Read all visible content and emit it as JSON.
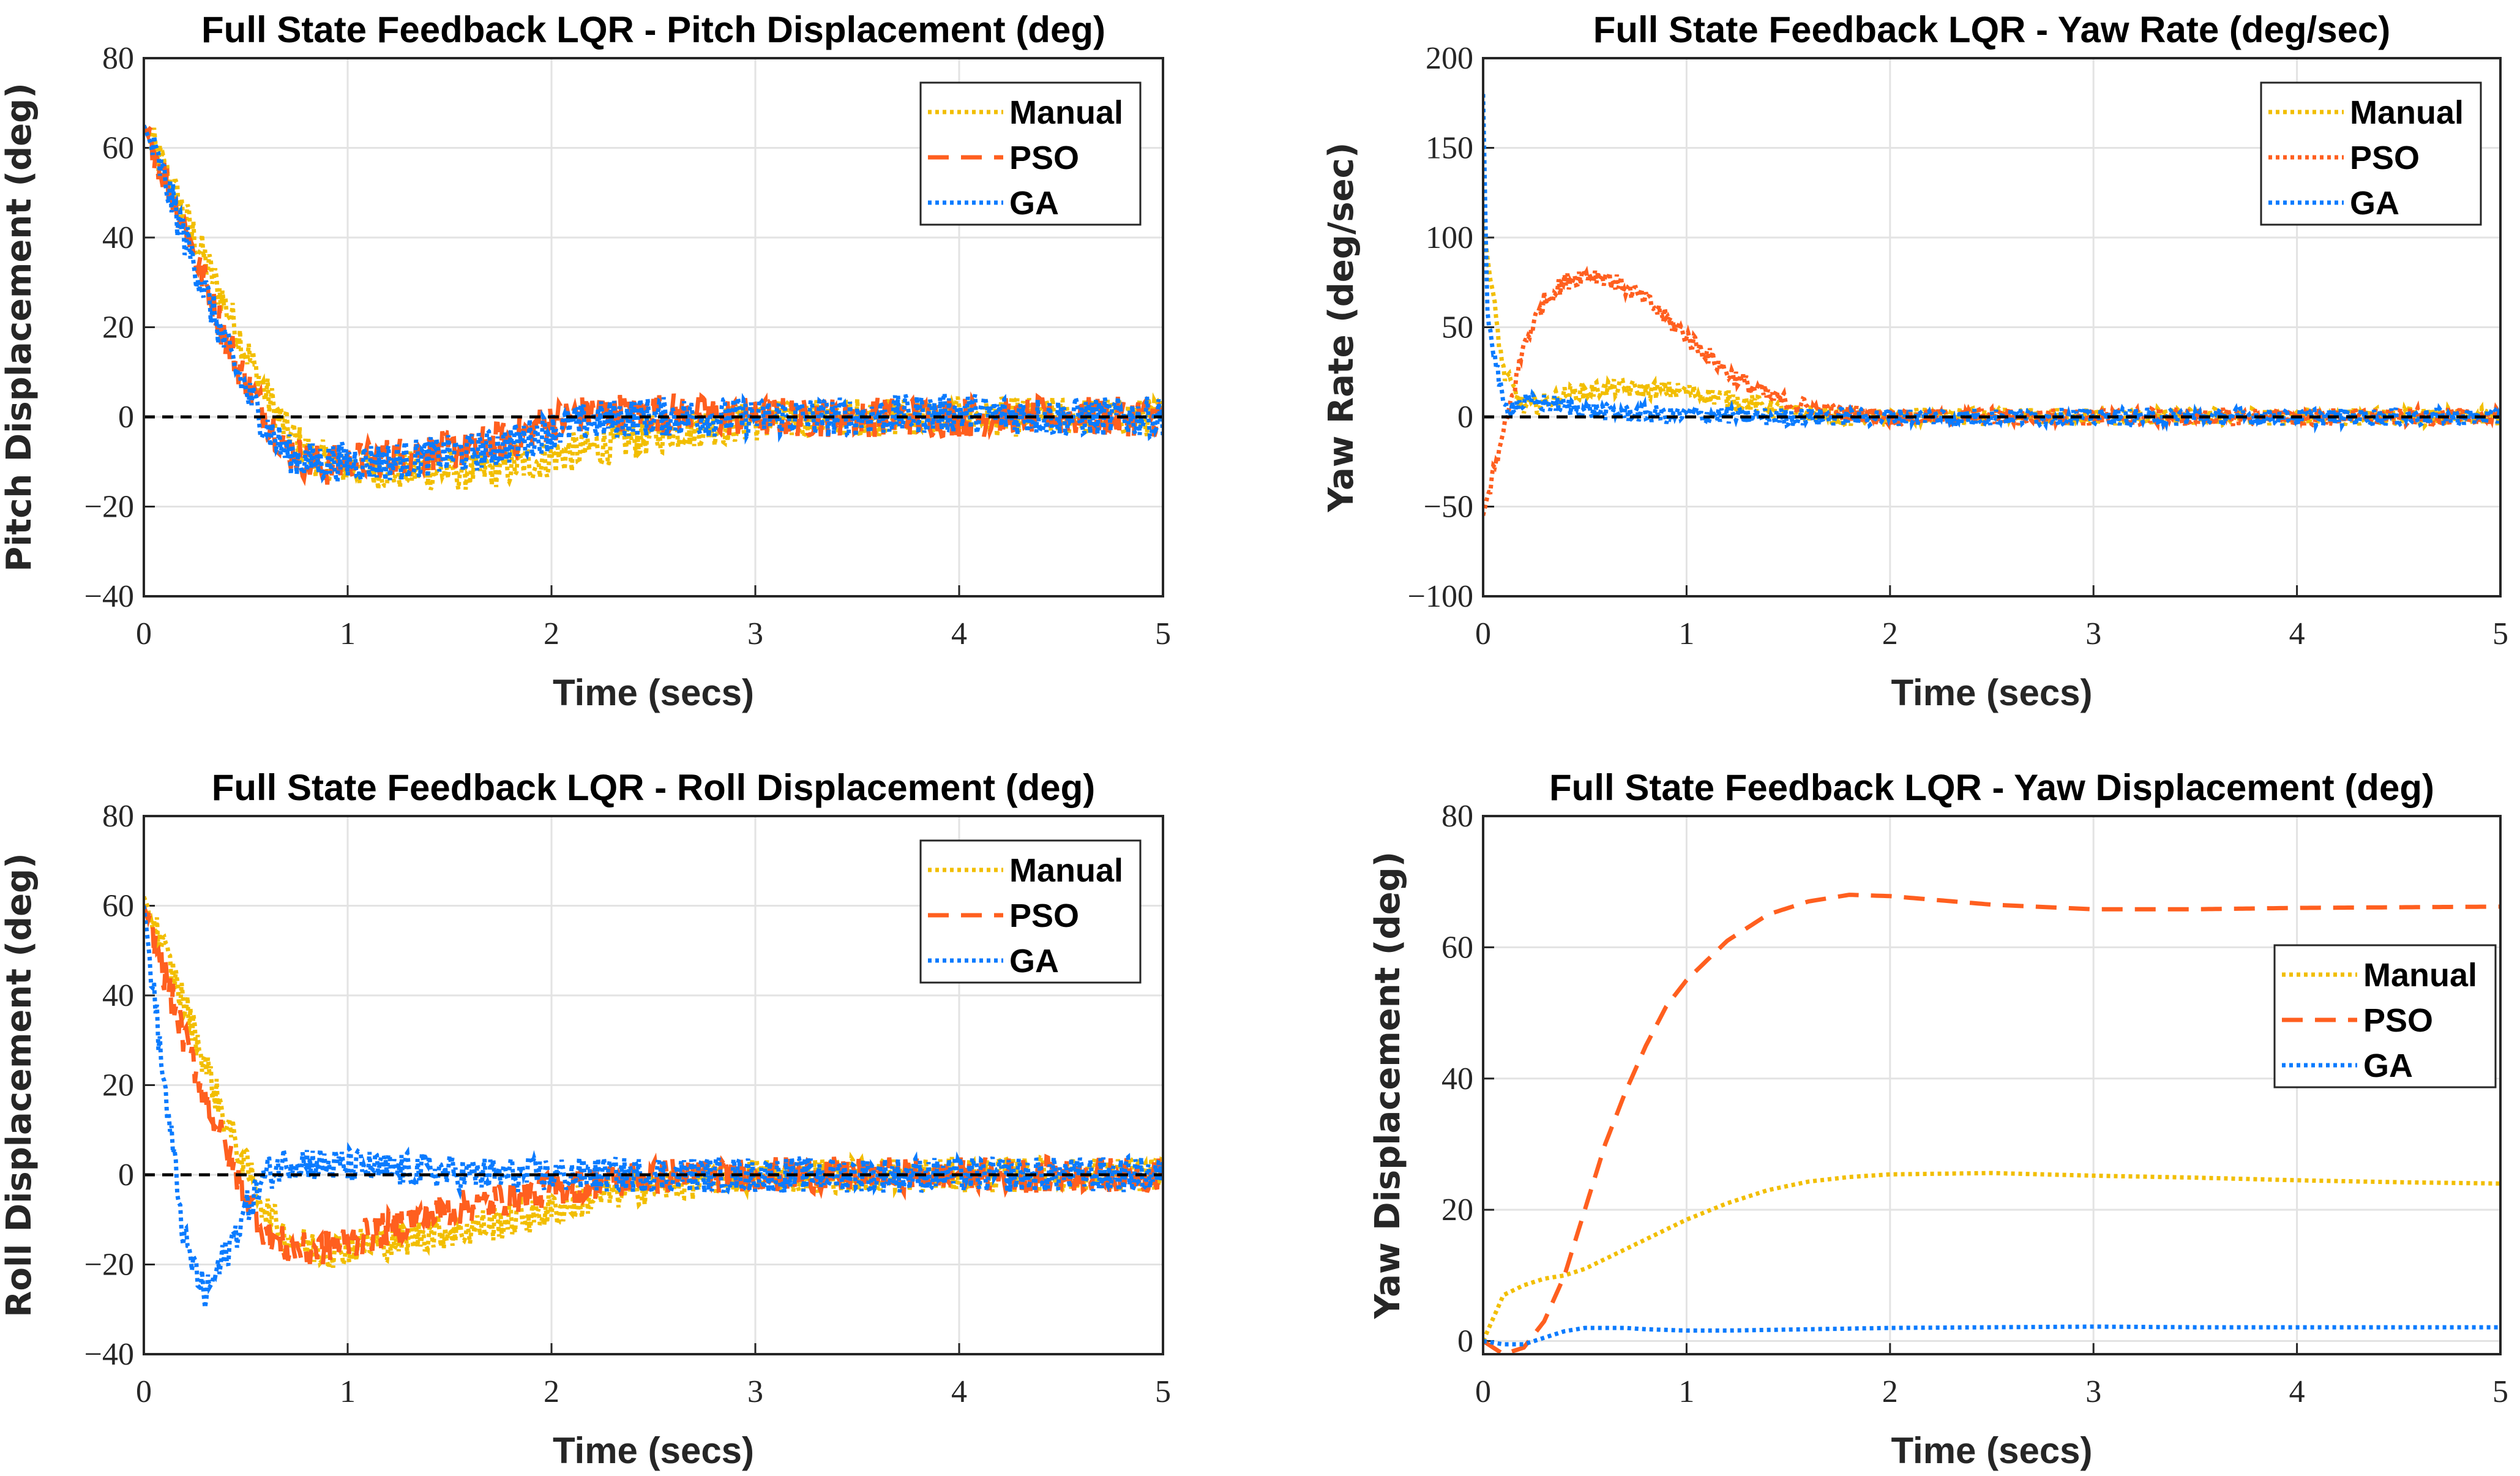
{
  "chart_data": [
    {
      "type": "line",
      "title": "Full State Feedback LQR - Pitch Displacement (deg)",
      "xlabel": "Time (secs)",
      "ylabel": "Pitch Displacement (deg)",
      "xlim": [
        0,
        5
      ],
      "ylim": [
        -40,
        80
      ],
      "xticks": [
        "0",
        "1",
        "2",
        "3",
        "4",
        "5"
      ],
      "yticks": [
        "−40",
        "−20",
        "0",
        "20",
        "40",
        "60",
        "80"
      ],
      "ytick_values": [
        -40,
        -20,
        0,
        20,
        40,
        60,
        80
      ],
      "grid": true,
      "reference_line": 0,
      "legend_position": "top-right",
      "noise_amplitude": 4.5,
      "x": [
        0,
        0.1,
        0.2,
        0.3,
        0.4,
        0.5,
        0.6,
        0.7,
        0.8,
        0.9,
        1.0,
        1.2,
        1.4,
        1.6,
        1.8,
        2.0,
        2.2,
        2.4,
        2.6,
        2.8,
        3.0,
        3.5,
        4,
        4.5,
        5
      ],
      "series": [
        {
          "name": "Manual",
          "color": "#F2BE00",
          "style": "dotted",
          "values": [
            65,
            55,
            45,
            35,
            25,
            15,
            5,
            -3,
            -8,
            -10,
            -11,
            -12,
            -12,
            -12,
            -11,
            -9,
            -7,
            -5,
            -3,
            -2,
            -1,
            0,
            0,
            0,
            0
          ]
        },
        {
          "name": "PSO",
          "color": "#FF5F1F",
          "style": "dashed",
          "values": [
            65,
            54,
            42,
            30,
            18,
            8,
            0,
            -7,
            -10,
            -11,
            -10,
            -9,
            -8,
            -7,
            -5,
            -1,
            1,
            1,
            1,
            0,
            0,
            0,
            0,
            0,
            0
          ]
        },
        {
          "name": "GA",
          "color": "#0A7BFF",
          "style": "dotted",
          "values": [
            65,
            53,
            40,
            28,
            16,
            6,
            -2,
            -8,
            -10,
            -10,
            -10,
            -10,
            -9,
            -8,
            -6,
            -3,
            -1,
            0,
            0,
            0,
            0,
            0,
            1,
            0,
            0
          ]
        }
      ]
    },
    {
      "type": "line",
      "title": "Full State Feedback LQR - Yaw Rate (deg/sec)",
      "xlabel": "Time (secs)",
      "ylabel": "Yaw Rate (deg/sec)",
      "xlim": [
        0,
        5
      ],
      "ylim": [
        -100,
        200
      ],
      "xticks": [
        "0",
        "1",
        "2",
        "3",
        "4",
        "5"
      ],
      "yticks": [
        "−100",
        "−50",
        "0",
        "50",
        "100",
        "150",
        "200"
      ],
      "ytick_values": [
        -100,
        -50,
        0,
        50,
        100,
        150,
        200
      ],
      "grid": true,
      "reference_line": 0,
      "legend_position": "top-right",
      "noise_amplitude": 5,
      "x": [
        0,
        0.02,
        0.1,
        0.2,
        0.3,
        0.4,
        0.5,
        0.6,
        0.7,
        0.8,
        0.9,
        1.0,
        1.1,
        1.2,
        1.3,
        1.4,
        1.5,
        1.6,
        1.7,
        1.8,
        2.0,
        2.5,
        3,
        4,
        5
      ],
      "series": [
        {
          "name": "Manual",
          "color": "#F2BE00",
          "style": "dotted",
          "values": [
            110,
            90,
            25,
            5,
            8,
            12,
            14,
            16,
            16,
            15,
            15,
            14,
            12,
            10,
            8,
            5,
            3,
            2,
            1,
            0,
            0,
            0,
            0,
            0,
            0
          ]
        },
        {
          "name": "PSO",
          "color": "#FF5F1F",
          "style": "dotted",
          "values": [
            -55,
            -45,
            -10,
            40,
            65,
            75,
            80,
            78,
            72,
            65,
            55,
            45,
            35,
            25,
            18,
            12,
            8,
            5,
            3,
            2,
            0,
            0,
            0,
            0,
            0
          ]
        },
        {
          "name": "GA",
          "color": "#0A7BFF",
          "style": "dotted",
          "values": [
            180,
            60,
            5,
            8,
            8,
            6,
            4,
            3,
            2,
            2,
            1,
            1,
            1,
            1,
            0,
            0,
            0,
            0,
            0,
            0,
            0,
            0,
            0,
            0,
            0
          ]
        }
      ]
    },
    {
      "type": "line",
      "title": "Full State Feedback LQR - Roll Displacement (deg)",
      "xlabel": "Time (secs)",
      "ylabel": "Roll Displacement (deg)",
      "xlim": [
        0,
        5
      ],
      "ylim": [
        -40,
        80
      ],
      "xticks": [
        "0",
        "1",
        "2",
        "3",
        "4",
        "5"
      ],
      "yticks": [
        "−40",
        "−20",
        "0",
        "20",
        "40",
        "60",
        "80"
      ],
      "ytick_values": [
        -40,
        -20,
        0,
        20,
        40,
        60,
        80
      ],
      "grid": true,
      "reference_line": 0,
      "legend_position": "top-right",
      "noise_amplitude": 4,
      "x": [
        0,
        0.1,
        0.2,
        0.3,
        0.4,
        0.5,
        0.6,
        0.7,
        0.8,
        0.9,
        1.0,
        1.2,
        1.4,
        1.6,
        1.8,
        2.0,
        2.2,
        2.4,
        2.6,
        2.8,
        3.0,
        3.5,
        4,
        4.5,
        5
      ],
      "series": [
        {
          "name": "Manual",
          "color": "#F2BE00",
          "style": "dotted",
          "values": [
            62,
            50,
            38,
            25,
            12,
            2,
            -8,
            -14,
            -16,
            -17,
            -16,
            -15,
            -13,
            -12,
            -10,
            -8,
            -5,
            -3,
            -2,
            -1,
            0,
            0,
            0,
            0,
            0
          ]
        },
        {
          "name": "PSO",
          "color": "#FF5F1F",
          "style": "dashed",
          "values": [
            60,
            45,
            30,
            18,
            6,
            -5,
            -13,
            -16,
            -17,
            -16,
            -15,
            -12,
            -9,
            -7,
            -5,
            -3,
            -2,
            -1,
            0,
            0,
            0,
            0,
            0,
            0,
            0
          ]
        },
        {
          "name": "GA",
          "color": "#0A7BFF",
          "style": "dotted",
          "values": [
            60,
            20,
            -15,
            -27,
            -18,
            -8,
            0,
            3,
            3,
            2,
            2,
            1,
            1,
            0,
            0,
            0,
            0,
            0,
            0,
            0,
            0,
            0,
            0,
            0,
            0
          ]
        }
      ]
    },
    {
      "type": "line",
      "title": "Full State Feedback LQR - Yaw Displacement (deg)",
      "xlabel": "Time (secs)",
      "ylabel": "Yaw Displacement (deg)",
      "xlim": [
        0,
        5
      ],
      "ylim": [
        -2,
        80
      ],
      "xticks": [
        "0",
        "1",
        "2",
        "3",
        "4",
        "5"
      ],
      "yticks": [
        "0",
        "20",
        "40",
        "60",
        "80"
      ],
      "ytick_values": [
        0,
        20,
        40,
        60,
        80
      ],
      "grid": true,
      "legend_position": "right",
      "noise_amplitude": 0,
      "x": [
        0,
        0.1,
        0.2,
        0.3,
        0.4,
        0.5,
        0.6,
        0.7,
        0.8,
        0.9,
        1.0,
        1.2,
        1.4,
        1.6,
        1.8,
        2.0,
        2.5,
        3,
        3.5,
        4,
        4.5,
        5
      ],
      "series": [
        {
          "name": "Manual",
          "color": "#F2BE00",
          "style": "dotted",
          "values": [
            0,
            7,
            8.5,
            9.5,
            10,
            11,
            12.5,
            14,
            15.5,
            17,
            18.5,
            21,
            23,
            24.3,
            25,
            25.4,
            25.6,
            25.2,
            24.9,
            24.5,
            24.2,
            24
          ]
        },
        {
          "name": "PSO",
          "color": "#FF5F1F",
          "style": "dashed",
          "values": [
            0,
            -2,
            -1,
            3,
            10,
            20,
            30,
            38,
            45,
            51,
            55,
            61,
            65,
            67,
            68,
            67.8,
            66.5,
            65.8,
            65.8,
            66,
            66.1,
            66.2
          ]
        },
        {
          "name": "GA",
          "color": "#0A7BFF",
          "style": "dotted",
          "values": [
            0,
            -0.5,
            -0.5,
            0.5,
            1.5,
            2,
            2,
            2,
            1.8,
            1.7,
            1.6,
            1.6,
            1.7,
            1.8,
            1.9,
            2,
            2.1,
            2.2,
            2.1,
            2.1,
            2.1,
            2.1
          ]
        }
      ]
    }
  ]
}
